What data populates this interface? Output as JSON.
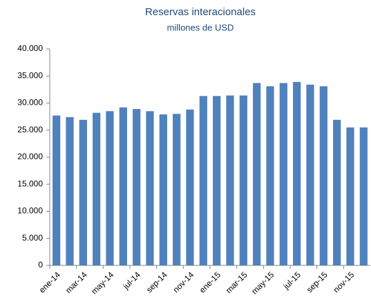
{
  "chart_data": {
    "type": "bar",
    "title": "Reservas interacionales",
    "subtitle": "millones de USD",
    "categories": [
      "ene-14",
      null,
      "mar-14",
      null,
      "may-14",
      null,
      "jul-14",
      null,
      "sep-14",
      null,
      "nov-14",
      null,
      "ene-15",
      null,
      "mar-15",
      null,
      "may-15",
      null,
      "jul-15",
      null,
      "sep-15",
      null,
      "nov-15",
      null
    ],
    "values": [
      27700,
      27400,
      26900,
      28200,
      28500,
      29200,
      28900,
      28500,
      27900,
      28000,
      28800,
      31300,
      31300,
      31400,
      31400,
      33700,
      33100,
      33700,
      33900,
      33400,
      33100,
      26900,
      25500,
      25500
    ],
    "color": "#4f81bd",
    "ylim": [
      0,
      40000
    ],
    "yticks": [
      0,
      {
        "value": 5000,
        "label": "5.000"
      },
      {
        "value": 10000,
        "label": "10.000"
      },
      {
        "value": 15000,
        "label": "15.000"
      },
      {
        "value": 20000,
        "label": "20.000"
      },
      {
        "value": 25000,
        "label": "25.000"
      },
      {
        "value": 30000,
        "label": "30.000"
      },
      {
        "value": 35000,
        "label": "35.000"
      },
      {
        "value": 40000,
        "label": "40.000"
      }
    ],
    "grid": false
  }
}
